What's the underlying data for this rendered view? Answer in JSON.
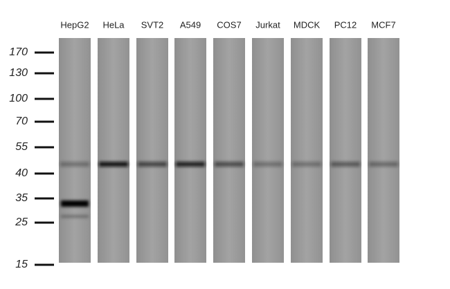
{
  "lanes": [
    "HepG2",
    "HeLa",
    "SVT2",
    "A549",
    "COS7",
    "Jurkat",
    "MDCK",
    "PC12",
    "MCF7"
  ],
  "markers": [
    170,
    130,
    100,
    70,
    55,
    40,
    35,
    25,
    15
  ]
}
